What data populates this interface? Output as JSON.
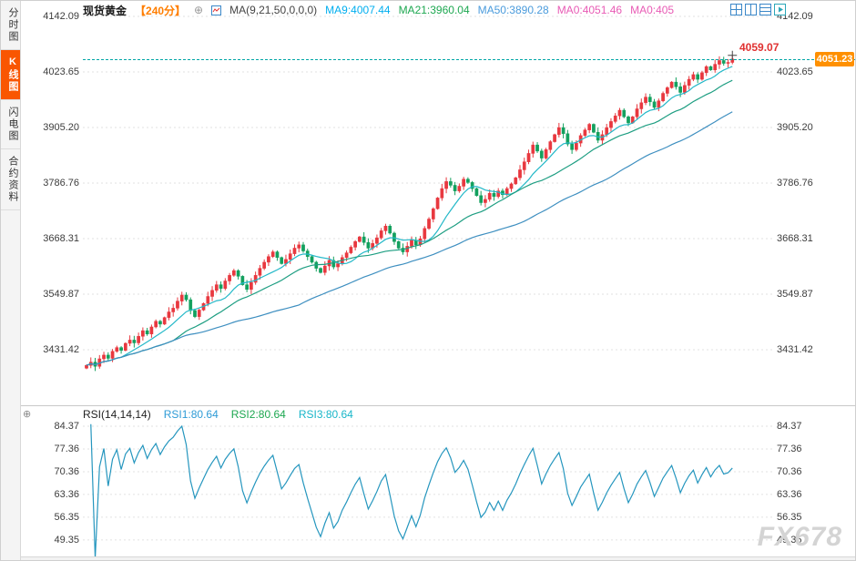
{
  "sidebar": {
    "items": [
      {
        "label": "分时图",
        "active": false
      },
      {
        "label": "K线图",
        "active": true
      },
      {
        "label": "闪电图",
        "active": false
      },
      {
        "label": "合约资料",
        "active": false
      }
    ]
  },
  "header": {
    "symbol": "现货黄金",
    "timeframe": "【240分】",
    "ma_label": "MA(9,21,50,0,0,0)",
    "ma_items": [
      {
        "label": "MA9:4007.44",
        "color": "#00AEEF"
      },
      {
        "label": "MA21:3960.04",
        "color": "#1DA750"
      },
      {
        "label": "MA50:3890.28",
        "color": "#4A9BDC"
      },
      {
        "label": "MA0:4051.46",
        "color": "#E85BB5"
      },
      {
        "label": "MA0:405",
        "color": "#E85BB5"
      }
    ]
  },
  "rsi_header": {
    "title": "RSI(14,14,14)",
    "items": [
      {
        "label": "RSI1:80.64",
        "color": "#2E9BD6"
      },
      {
        "label": "RSI2:80.64",
        "color": "#1DA750"
      },
      {
        "label": "RSI3:80.64",
        "color": "#19B6C9"
      }
    ]
  },
  "watermark": "FX678",
  "chart_data": {
    "type": "candlestick",
    "title": "现货黄金 240分 K线图",
    "main": {
      "price_ticks": [
        4142.09,
        4023.65,
        3905.2,
        3786.76,
        3668.31,
        3549.87,
        3431.42
      ],
      "current_price": 4051.23,
      "session_high": 4059.07,
      "ma_periods": [
        9,
        21,
        50
      ],
      "closes": [
        3398,
        3405,
        3396,
        3412,
        3420,
        3413,
        3428,
        3436,
        3430,
        3445,
        3452,
        3446,
        3460,
        3472,
        3465,
        3480,
        3492,
        3486,
        3500,
        3512,
        3520,
        3535,
        3548,
        3538,
        3515,
        3502,
        3516,
        3530,
        3545,
        3558,
        3570,
        3562,
        3578,
        3590,
        3600,
        3588,
        3570,
        3560,
        3575,
        3590,
        3605,
        3618,
        3630,
        3640,
        3628,
        3615,
        3624,
        3636,
        3648,
        3655,
        3642,
        3630,
        3618,
        3605,
        3596,
        3610,
        3622,
        3608,
        3615,
        3628,
        3638,
        3650,
        3662,
        3672,
        3660,
        3648,
        3658,
        3670,
        3685,
        3695,
        3680,
        3662,
        3648,
        3640,
        3652,
        3665,
        3655,
        3668,
        3690,
        3710,
        3732,
        3755,
        3775,
        3790,
        3782,
        3770,
        3780,
        3795,
        3788,
        3775,
        3760,
        3745,
        3752,
        3765,
        3758,
        3770,
        3762,
        3775,
        3785,
        3798,
        3815,
        3832,
        3850,
        3868,
        3855,
        3840,
        3858,
        3875,
        3890,
        3905,
        3892,
        3870,
        3858,
        3872,
        3888,
        3900,
        3912,
        3895,
        3878,
        3890,
        3905,
        3918,
        3930,
        3942,
        3928,
        3915,
        3928,
        3945,
        3958,
        3970,
        3960,
        3948,
        3962,
        3978,
        3990,
        4002,
        3992,
        3980,
        3995,
        4008,
        4018,
        4008,
        4022,
        4035,
        4028,
        4040,
        4048,
        4042,
        4044,
        4051.23
      ]
    },
    "rsi": {
      "period": 14,
      "ticks": [
        84.37,
        77.36,
        70.36,
        63.36,
        56.35,
        49.35
      ],
      "last_values": [
        80.64,
        80.64,
        80.64
      ]
    },
    "colors": {
      "up": "#E8383F",
      "down": "#13A05E",
      "ma9": "#23B8C8",
      "ma21": "#1E9E82",
      "ma50": "#3E8FC0",
      "rsi_line": "#2596BE",
      "current_line": "#00A6A6",
      "grid": "#E2E2E2",
      "tag_bg": "#FF9000"
    }
  }
}
